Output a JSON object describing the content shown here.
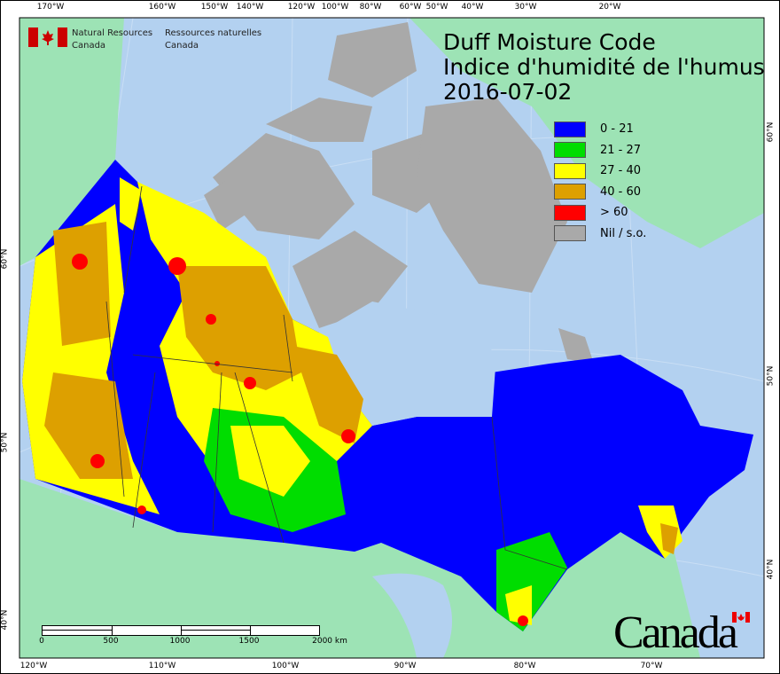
{
  "agency": {
    "en_line1": "Natural Resources",
    "en_line2": "Canada",
    "fr_line1": "Ressources naturelles",
    "fr_line2": "Canada"
  },
  "title": {
    "line1": "Duff Moisture Code",
    "line2": "Indice d'humidité de l'humus",
    "date": "2016-07-02"
  },
  "legend": [
    {
      "label": "0 - 21",
      "color": "#0000ff"
    },
    {
      "label": "21 - 27",
      "color": "#00dd00"
    },
    {
      "label": "27 - 40",
      "color": "#ffff00"
    },
    {
      "label": "40 - 60",
      "color": "#dda000"
    },
    {
      "label": "> 60",
      "color": "#ff0000"
    },
    {
      "label": "Nil / s.o.",
      "color": "#a9a9a9"
    }
  ],
  "axes": {
    "top": [
      "170°W",
      "160°W",
      "150°W",
      "140°W",
      "120°W",
      "100°W",
      "80°W",
      "60°W",
      "50°W",
      "40°W",
      "30°W",
      "20°W"
    ],
    "bottom": [
      "120°W",
      "110°W",
      "100°W",
      "90°W",
      "80°W",
      "70°W"
    ],
    "left": [
      "60°N",
      "50°N",
      "40°N"
    ],
    "right": [
      "60°N",
      "50°N",
      "40°N"
    ]
  },
  "scale_bar": {
    "labels": [
      "0",
      "500",
      "1000",
      "1500",
      "2000 km"
    ]
  },
  "wordmark": "Canada",
  "colors": {
    "ocean": "#b3d1f0",
    "foreign_land": "#9de3b5",
    "no_data": "#a9a9a9"
  }
}
